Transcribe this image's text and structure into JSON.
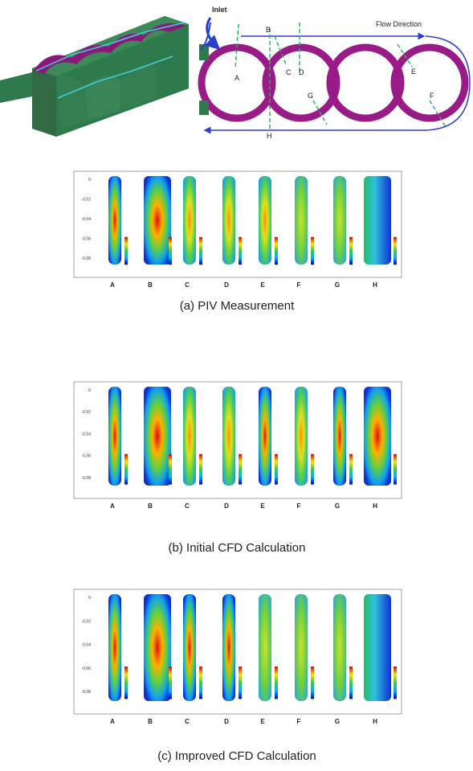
{
  "diagram": {
    "inlet": "Inlet",
    "flow_direction": "Flow Direction",
    "section_labels": [
      "A",
      "B",
      "C",
      "D",
      "E",
      "F",
      "G",
      "H"
    ]
  },
  "panels": [
    {
      "caption": "(a)  PIV Measurement",
      "yticks": [
        "0",
        "-0.02",
        "-0.04",
        "-0.06",
        "-0.08"
      ],
      "columns": [
        "A",
        "B",
        "C",
        "D",
        "E",
        "F",
        "G",
        "H"
      ]
    },
    {
      "caption": "(b)  Initial  CFD  Calculation",
      "yticks": [
        "0",
        "-0.02",
        "-0.04",
        "-0.06",
        "-0.08"
      ],
      "columns": [
        "A",
        "B",
        "C",
        "D",
        "E",
        "F",
        "G",
        "H"
      ]
    },
    {
      "caption": "(c)  Improved  CFD  Calculation",
      "yticks": [
        "0",
        "-0.02",
        "-0.04",
        "-0.06",
        "-0.08"
      ],
      "columns": [
        "A",
        "B",
        "C",
        "D",
        "E",
        "F",
        "G",
        "H"
      ]
    }
  ]
}
